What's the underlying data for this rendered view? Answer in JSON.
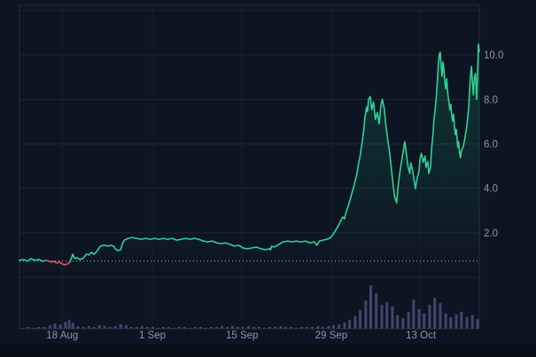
{
  "chart_data": {
    "type": "line",
    "title": "Crypto price chart with volume, 18 Aug - 13 Oct",
    "legend": "none",
    "grid": "horizontal-major",
    "x_axis": {
      "ticks": [
        {
          "label": "18 Aug",
          "f": 0.093
        },
        {
          "label": "1 Sep",
          "f": 0.289
        },
        {
          "label": "15 Sep",
          "f": 0.484
        },
        {
          "label": "29 Sep",
          "f": 0.678
        },
        {
          "label": "13 Oct",
          "f": 0.873
        }
      ]
    },
    "y_axis": {
      "min": 0,
      "max": 12.24,
      "ticks": [
        {
          "label": "10.0",
          "value": 10
        },
        {
          "label": "8.0",
          "value": 8
        },
        {
          "label": "6.0",
          "value": 6
        },
        {
          "label": "4.0",
          "value": 4
        },
        {
          "label": "2.0",
          "value": 2
        }
      ],
      "grid_values": [
        12,
        10,
        8,
        6,
        4,
        2,
        0
      ]
    },
    "reference_line": {
      "value": 0.73,
      "style": "dotted"
    },
    "down_segment_f": [
      0.0575,
      0.1105
    ],
    "price_series": [
      [
        0.0,
        0.76
      ],
      [
        0.01,
        0.8
      ],
      [
        0.017,
        0.72
      ],
      [
        0.025,
        0.84
      ],
      [
        0.033,
        0.76
      ],
      [
        0.042,
        0.8
      ],
      [
        0.05,
        0.72
      ],
      [
        0.058,
        0.76
      ],
      [
        0.064,
        0.72
      ],
      [
        0.069,
        0.68
      ],
      [
        0.075,
        0.72
      ],
      [
        0.081,
        0.64
      ],
      [
        0.087,
        0.68
      ],
      [
        0.093,
        0.6
      ],
      [
        0.098,
        0.56
      ],
      [
        0.104,
        0.6
      ],
      [
        0.11,
        0.68
      ],
      [
        0.112,
        0.8
      ],
      [
        0.116,
        1.04
      ],
      [
        0.12,
        0.84
      ],
      [
        0.125,
        0.88
      ],
      [
        0.131,
        0.8
      ],
      [
        0.137,
        0.84
      ],
      [
        0.141,
        0.92
      ],
      [
        0.145,
        1.04
      ],
      [
        0.151,
        1.0
      ],
      [
        0.156,
        1.12
      ],
      [
        0.162,
        1.04
      ],
      [
        0.168,
        1.16
      ],
      [
        0.172,
        1.28
      ],
      [
        0.176,
        1.4
      ],
      [
        0.181,
        1.44
      ],
      [
        0.187,
        1.44
      ],
      [
        0.193,
        1.4
      ],
      [
        0.199,
        1.44
      ],
      [
        0.205,
        1.4
      ],
      [
        0.208,
        1.28
      ],
      [
        0.214,
        1.2
      ],
      [
        0.22,
        1.24
      ],
      [
        0.224,
        1.52
      ],
      [
        0.228,
        1.67
      ],
      [
        0.236,
        1.75
      ],
      [
        0.245,
        1.79
      ],
      [
        0.255,
        1.75
      ],
      [
        0.264,
        1.71
      ],
      [
        0.274,
        1.75
      ],
      [
        0.284,
        1.71
      ],
      [
        0.293,
        1.75
      ],
      [
        0.303,
        1.71
      ],
      [
        0.313,
        1.75
      ],
      [
        0.322,
        1.71
      ],
      [
        0.332,
        1.75
      ],
      [
        0.342,
        1.67
      ],
      [
        0.351,
        1.71
      ],
      [
        0.361,
        1.75
      ],
      [
        0.371,
        1.71
      ],
      [
        0.38,
        1.75
      ],
      [
        0.39,
        1.71
      ],
      [
        0.4,
        1.63
      ],
      [
        0.409,
        1.59
      ],
      [
        0.419,
        1.63
      ],
      [
        0.429,
        1.55
      ],
      [
        0.438,
        1.51
      ],
      [
        0.448,
        1.55
      ],
      [
        0.458,
        1.48
      ],
      [
        0.467,
        1.4
      ],
      [
        0.477,
        1.44
      ],
      [
        0.486,
        1.32
      ],
      [
        0.496,
        1.28
      ],
      [
        0.506,
        1.32
      ],
      [
        0.515,
        1.36
      ],
      [
        0.525,
        1.28
      ],
      [
        0.535,
        1.24
      ],
      [
        0.544,
        1.28
      ],
      [
        0.546,
        1.24
      ],
      [
        0.548,
        1.4
      ],
      [
        0.554,
        1.36
      ],
      [
        0.564,
        1.48
      ],
      [
        0.573,
        1.59
      ],
      [
        0.583,
        1.63
      ],
      [
        0.593,
        1.59
      ],
      [
        0.602,
        1.63
      ],
      [
        0.612,
        1.59
      ],
      [
        0.622,
        1.63
      ],
      [
        0.631,
        1.55
      ],
      [
        0.641,
        1.59
      ],
      [
        0.647,
        1.44
      ],
      [
        0.652,
        1.63
      ],
      [
        0.66,
        1.67
      ],
      [
        0.668,
        1.71
      ],
      [
        0.674,
        1.75
      ],
      [
        0.68,
        1.87
      ],
      [
        0.685,
        2.03
      ],
      [
        0.691,
        2.23
      ],
      [
        0.697,
        2.47
      ],
      [
        0.703,
        2.71
      ],
      [
        0.707,
        2.63
      ],
      [
        0.71,
        2.91
      ],
      [
        0.716,
        3.27
      ],
      [
        0.722,
        3.71
      ],
      [
        0.728,
        4.15
      ],
      [
        0.734,
        4.67
      ],
      [
        0.737,
        5.06
      ],
      [
        0.741,
        5.5
      ],
      [
        0.745,
        6.06
      ],
      [
        0.749,
        6.66
      ],
      [
        0.751,
        7.18
      ],
      [
        0.755,
        7.66
      ],
      [
        0.757,
        7.46
      ],
      [
        0.759,
        8.01
      ],
      [
        0.763,
        8.13
      ],
      [
        0.766,
        7.54
      ],
      [
        0.77,
        7.89
      ],
      [
        0.774,
        7.1
      ],
      [
        0.778,
        7.42
      ],
      [
        0.782,
        6.9
      ],
      [
        0.786,
        7.7
      ],
      [
        0.789,
        8.01
      ],
      [
        0.793,
        7.62
      ],
      [
        0.797,
        6.82
      ],
      [
        0.801,
        6.18
      ],
      [
        0.805,
        5.62
      ],
      [
        0.809,
        4.82
      ],
      [
        0.813,
        4.11
      ],
      [
        0.816,
        3.63
      ],
      [
        0.82,
        3.35
      ],
      [
        0.824,
        4.23
      ],
      [
        0.828,
        4.82
      ],
      [
        0.832,
        5.34
      ],
      [
        0.836,
        5.86
      ],
      [
        0.838,
        6.1
      ],
      [
        0.842,
        5.46
      ],
      [
        0.845,
        4.98
      ],
      [
        0.849,
        4.67
      ],
      [
        0.851,
        5.14
      ],
      [
        0.855,
        4.82
      ],
      [
        0.859,
        4.27
      ],
      [
        0.861,
        3.99
      ],
      [
        0.865,
        4.47
      ],
      [
        0.869,
        4.78
      ],
      [
        0.871,
        5.3
      ],
      [
        0.874,
        5.58
      ],
      [
        0.878,
        5.18
      ],
      [
        0.882,
        5.46
      ],
      [
        0.884,
        4.94
      ],
      [
        0.888,
        5.22
      ],
      [
        0.89,
        4.67
      ],
      [
        0.894,
        4.98
      ],
      [
        0.896,
        5.7
      ],
      [
        0.898,
        6.18
      ],
      [
        0.9,
        6.62
      ],
      [
        0.901,
        6.98
      ],
      [
        0.903,
        7.38
      ],
      [
        0.905,
        7.78
      ],
      [
        0.907,
        8.25
      ],
      [
        0.909,
        8.89
      ],
      [
        0.911,
        9.61
      ],
      [
        0.913,
        10.01
      ],
      [
        0.915,
        10.13
      ],
      [
        0.917,
        9.53
      ],
      [
        0.919,
        9.05
      ],
      [
        0.921,
        9.69
      ],
      [
        0.923,
        9.37
      ],
      [
        0.925,
        8.81
      ],
      [
        0.927,
        8.49
      ],
      [
        0.929,
        8.93
      ],
      [
        0.93,
        8.61
      ],
      [
        0.932,
        8.17
      ],
      [
        0.934,
        7.9
      ],
      [
        0.936,
        7.54
      ],
      [
        0.938,
        7.78
      ],
      [
        0.94,
        7.3
      ],
      [
        0.942,
        7.02
      ],
      [
        0.944,
        7.34
      ],
      [
        0.946,
        6.78
      ],
      [
        0.948,
        6.42
      ],
      [
        0.95,
        6.66
      ],
      [
        0.952,
        6.18
      ],
      [
        0.953,
        5.86
      ],
      [
        0.955,
        6.1
      ],
      [
        0.957,
        5.62
      ],
      [
        0.959,
        5.38
      ],
      [
        0.961,
        5.7
      ],
      [
        0.965,
        5.86
      ],
      [
        0.969,
        6.3
      ],
      [
        0.973,
        6.82
      ],
      [
        0.977,
        7.7
      ],
      [
        0.979,
        8.49
      ],
      [
        0.981,
        9.09
      ],
      [
        0.983,
        9.49
      ],
      [
        0.985,
        8.81
      ],
      [
        0.987,
        8.21
      ],
      [
        0.988,
        8.69
      ],
      [
        0.99,
        9.05
      ],
      [
        0.992,
        9.17
      ],
      [
        0.994,
        8.01
      ],
      [
        0.996,
        8.89
      ],
      [
        0.998,
        10.49
      ],
      [
        1.0,
        10.17
      ]
    ],
    "volume_series": [
      [
        0.008,
        0.02
      ],
      [
        0.019,
        0.04
      ],
      [
        0.031,
        0.02
      ],
      [
        0.042,
        0.04
      ],
      [
        0.054,
        0.04
      ],
      [
        0.066,
        0.08
      ],
      [
        0.077,
        0.12
      ],
      [
        0.089,
        0.1
      ],
      [
        0.1,
        0.16
      ],
      [
        0.108,
        0.2
      ],
      [
        0.116,
        0.14
      ],
      [
        0.127,
        0.06
      ],
      [
        0.139,
        0.04
      ],
      [
        0.151,
        0.06
      ],
      [
        0.162,
        0.04
      ],
      [
        0.174,
        0.08
      ],
      [
        0.185,
        0.06
      ],
      [
        0.197,
        0.04
      ],
      [
        0.208,
        0.06
      ],
      [
        0.22,
        0.1
      ],
      [
        0.232,
        0.08
      ],
      [
        0.243,
        0.04
      ],
      [
        0.255,
        0.04
      ],
      [
        0.266,
        0.06
      ],
      [
        0.278,
        0.04
      ],
      [
        0.29,
        0.04
      ],
      [
        0.301,
        0.02
      ],
      [
        0.313,
        0.04
      ],
      [
        0.324,
        0.04
      ],
      [
        0.336,
        0.02
      ],
      [
        0.347,
        0.04
      ],
      [
        0.359,
        0.04
      ],
      [
        0.371,
        0.02
      ],
      [
        0.382,
        0.04
      ],
      [
        0.394,
        0.04
      ],
      [
        0.405,
        0.02
      ],
      [
        0.417,
        0.04
      ],
      [
        0.429,
        0.04
      ],
      [
        0.44,
        0.06
      ],
      [
        0.452,
        0.04
      ],
      [
        0.463,
        0.06
      ],
      [
        0.475,
        0.04
      ],
      [
        0.486,
        0.04
      ],
      [
        0.498,
        0.06
      ],
      [
        0.51,
        0.04
      ],
      [
        0.521,
        0.04
      ],
      [
        0.533,
        0.02
      ],
      [
        0.544,
        0.04
      ],
      [
        0.556,
        0.04
      ],
      [
        0.568,
        0.06
      ],
      [
        0.579,
        0.04
      ],
      [
        0.591,
        0.04
      ],
      [
        0.602,
        0.02
      ],
      [
        0.614,
        0.04
      ],
      [
        0.625,
        0.04
      ],
      [
        0.637,
        0.04
      ],
      [
        0.649,
        0.06
      ],
      [
        0.66,
        0.04
      ],
      [
        0.672,
        0.06
      ],
      [
        0.683,
        0.08
      ],
      [
        0.695,
        0.1
      ],
      [
        0.707,
        0.14
      ],
      [
        0.718,
        0.2
      ],
      [
        0.73,
        0.29
      ],
      [
        0.741,
        0.43
      ],
      [
        0.753,
        0.65
      ],
      [
        0.764,
        1.0
      ],
      [
        0.776,
        0.82
      ],
      [
        0.788,
        0.55
      ],
      [
        0.799,
        0.61
      ],
      [
        0.811,
        0.51
      ],
      [
        0.822,
        0.31
      ],
      [
        0.834,
        0.24
      ],
      [
        0.846,
        0.39
      ],
      [
        0.857,
        0.67
      ],
      [
        0.869,
        0.45
      ],
      [
        0.88,
        0.35
      ],
      [
        0.892,
        0.55
      ],
      [
        0.903,
        0.71
      ],
      [
        0.915,
        0.59
      ],
      [
        0.927,
        0.35
      ],
      [
        0.938,
        0.27
      ],
      [
        0.95,
        0.33
      ],
      [
        0.961,
        0.39
      ],
      [
        0.973,
        0.27
      ],
      [
        0.985,
        0.31
      ],
      [
        0.996,
        0.22
      ]
    ]
  },
  "colors": {
    "background": "#0d1422",
    "panel_bottom": "#090d15",
    "grid": "#1d2634",
    "grid_vertical": "rgba(180,195,220,0.06)",
    "frame": "#242e40",
    "frame_bottom": "#2c3648",
    "axis_text": "#8e96a8",
    "line_up": "#2ed394",
    "line_down": "#e0465a",
    "area_top": "rgba(30,201,140,0.20)",
    "area_bottom": "rgba(30,201,140,0)",
    "volume": "#3e486b",
    "ref_dotted": "#d7dde8"
  }
}
